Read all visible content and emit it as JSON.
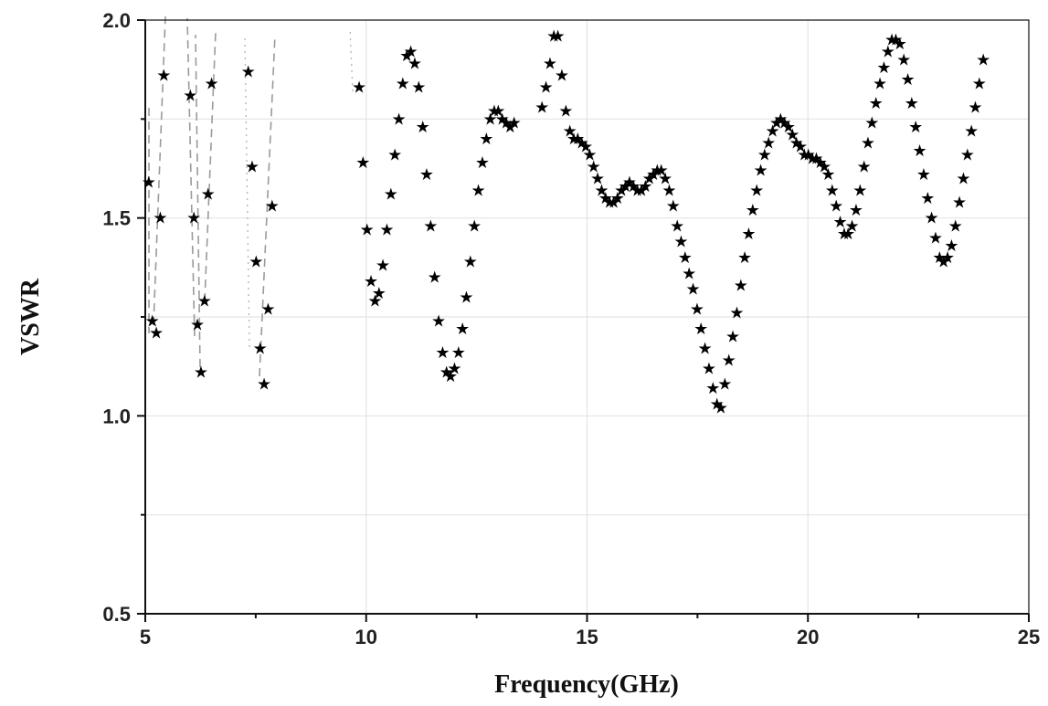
{
  "chart_data": {
    "type": "scatter",
    "title": "",
    "xlabel": "Frequency(GHz)",
    "ylabel": "VSWR",
    "xlim": [
      5,
      25
    ],
    "ylim": [
      0.5,
      2.0
    ],
    "xticks": [
      5,
      10,
      15,
      20,
      25
    ],
    "yticks": [
      0.5,
      1.0,
      1.5,
      2.0
    ],
    "xtick_labels": [
      "5",
      "10",
      "15",
      "20",
      "25"
    ],
    "ytick_labels": [
      "0.5",
      "1.0",
      "1.5",
      "2.0"
    ],
    "grid": true,
    "marker": "★",
    "series": [
      {
        "x": [
          5.08,
          5.16,
          5.25,
          5.34,
          5.42,
          6.02,
          6.1,
          6.18,
          6.26,
          6.34,
          6.42,
          6.5,
          7.33,
          7.42,
          7.51,
          7.6,
          7.69,
          7.78,
          7.87,
          9.84,
          9.93,
          10.02,
          10.11,
          10.2,
          10.29,
          10.38,
          10.47,
          10.56,
          10.65,
          10.74,
          10.83,
          10.92,
          11.01,
          11.1,
          11.19,
          11.28,
          11.37,
          11.46,
          11.55,
          11.64,
          11.73,
          11.82,
          11.91,
          12.0,
          12.09,
          12.18,
          12.27,
          12.36,
          12.45,
          12.54,
          12.63,
          12.72,
          12.81,
          12.9,
          12.99,
          13.08,
          13.17,
          13.26,
          13.35,
          13.98,
          14.07,
          14.16,
          14.25,
          14.34,
          14.43,
          14.52,
          14.61,
          14.7,
          14.79,
          14.88,
          14.97,
          15.06,
          15.15,
          15.24,
          15.33,
          15.42,
          15.51,
          15.6,
          15.69,
          15.78,
          15.87,
          15.96,
          16.05,
          16.14,
          16.23,
          16.32,
          16.41,
          16.5,
          16.59,
          16.68,
          16.77,
          16.86,
          16.95,
          17.04,
          17.13,
          17.22,
          17.31,
          17.4,
          17.49,
          17.58,
          17.67,
          17.76,
          17.85,
          17.94,
          18.03,
          18.12,
          18.21,
          18.3,
          18.39,
          18.48,
          18.57,
          18.66,
          18.75,
          18.84,
          18.93,
          19.02,
          19.11,
          19.2,
          19.29,
          19.38,
          19.47,
          19.56,
          19.65,
          19.74,
          19.83,
          19.92,
          20.01,
          20.1,
          20.19,
          20.28,
          20.37,
          20.46,
          20.55,
          20.64,
          20.73,
          20.82,
          20.91,
          21.0,
          21.09,
          21.18,
          21.27,
          21.36,
          21.45,
          21.54,
          21.63,
          21.72,
          21.81,
          21.9,
          21.99,
          22.08,
          22.17,
          22.26,
          22.35,
          22.44,
          22.53,
          22.62,
          22.71,
          22.8,
          22.89,
          22.98,
          23.07,
          23.16,
          23.25,
          23.34,
          23.43,
          23.52,
          23.61,
          23.7,
          23.79,
          23.88,
          23.97
        ],
        "y": [
          1.59,
          1.24,
          1.21,
          1.5,
          1.86,
          1.81,
          1.5,
          1.23,
          1.11,
          1.29,
          1.56,
          1.84,
          1.87,
          1.63,
          1.39,
          1.17,
          1.08,
          1.27,
          1.53,
          1.83,
          1.64,
          1.47,
          1.34,
          1.29,
          1.31,
          1.38,
          1.47,
          1.56,
          1.66,
          1.75,
          1.84,
          1.91,
          1.92,
          1.89,
          1.83,
          1.73,
          1.61,
          1.48,
          1.35,
          1.24,
          1.16,
          1.11,
          1.1,
          1.12,
          1.16,
          1.22,
          1.3,
          1.39,
          1.48,
          1.57,
          1.64,
          1.7,
          1.75,
          1.77,
          1.77,
          1.75,
          1.74,
          1.73,
          1.74,
          1.78,
          1.83,
          1.89,
          1.96,
          1.96,
          1.86,
          1.77,
          1.72,
          1.7,
          1.7,
          1.69,
          1.68,
          1.66,
          1.63,
          1.6,
          1.57,
          1.55,
          1.54,
          1.54,
          1.55,
          1.57,
          1.58,
          1.59,
          1.58,
          1.57,
          1.57,
          1.58,
          1.6,
          1.61,
          1.62,
          1.62,
          1.6,
          1.57,
          1.53,
          1.48,
          1.44,
          1.4,
          1.36,
          1.32,
          1.27,
          1.22,
          1.17,
          1.12,
          1.07,
          1.03,
          1.02,
          1.08,
          1.14,
          1.2,
          1.26,
          1.33,
          1.4,
          1.46,
          1.52,
          1.57,
          1.62,
          1.66,
          1.69,
          1.72,
          1.74,
          1.75,
          1.74,
          1.73,
          1.71,
          1.69,
          1.68,
          1.66,
          1.66,
          1.65,
          1.65,
          1.64,
          1.63,
          1.61,
          1.57,
          1.53,
          1.49,
          1.46,
          1.46,
          1.48,
          1.52,
          1.57,
          1.63,
          1.69,
          1.74,
          1.79,
          1.84,
          1.88,
          1.92,
          1.95,
          1.95,
          1.94,
          1.9,
          1.85,
          1.79,
          1.73,
          1.67,
          1.61,
          1.55,
          1.5,
          1.45,
          1.4,
          1.39,
          1.4,
          1.43,
          1.48,
          1.54,
          1.6,
          1.66,
          1.72,
          1.78,
          1.84,
          1.9
        ]
      }
    ]
  }
}
